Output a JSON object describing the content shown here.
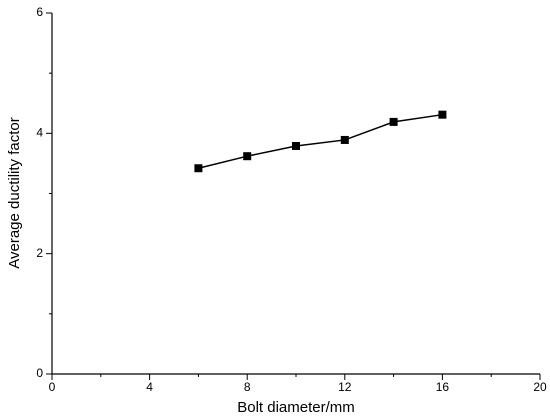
{
  "chart_data": {
    "type": "line",
    "x_label": "Bolt diameter/mm",
    "y_label": "Average ductility factor",
    "x": [
      6,
      8,
      10,
      12,
      14,
      16
    ],
    "series": [
      {
        "color": "#000000",
        "values": [
          3.42,
          3.62,
          3.79,
          3.89,
          4.19,
          4.31
        ]
      }
    ],
    "xlim": [
      0,
      20
    ],
    "xticks": [
      0,
      4,
      8,
      12,
      16,
      20
    ],
    "ylim": [
      0,
      6
    ],
    "yticks": [
      0,
      2,
      4,
      6
    ],
    "marker": "square"
  }
}
